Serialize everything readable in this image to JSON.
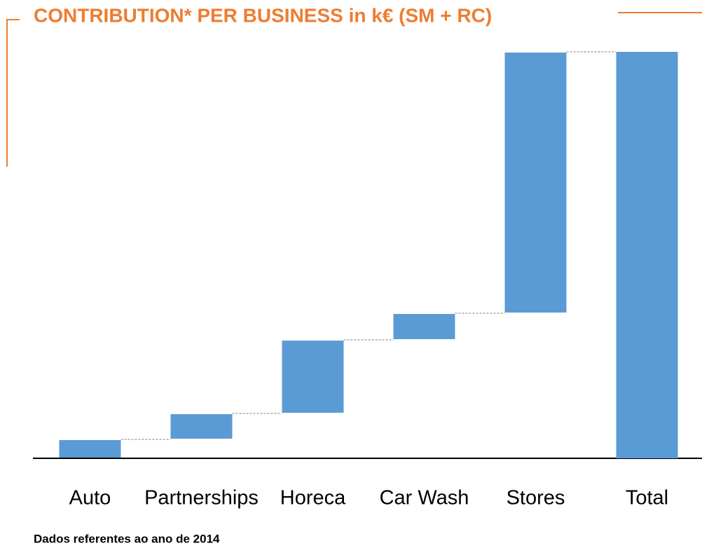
{
  "chart_data": {
    "type": "waterfall",
    "title": "CONTRIBUTION* PER BUSINESS in k€ (SM + RC)",
    "categories": [
      "Auto",
      "Partnerships",
      "Horeca",
      "Car Wash",
      "Stores",
      "Total"
    ],
    "values": [
      27,
      37,
      105,
      38,
      373,
      580
    ],
    "color": "#5b9bd5",
    "ylim": [
      0,
      600
    ],
    "footnote": "Dados referentes ao ano de 2014"
  }
}
